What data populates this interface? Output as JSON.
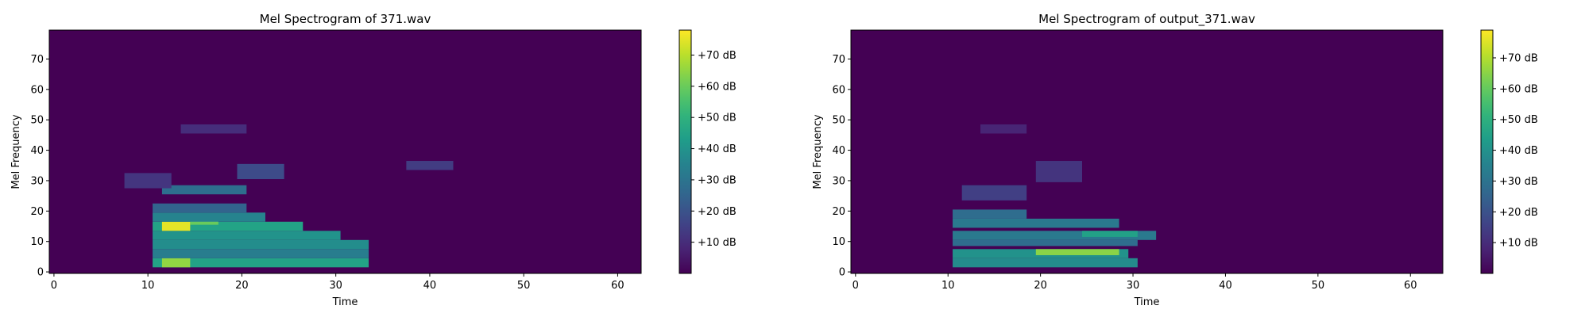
{
  "chart_data": [
    {
      "type": "heatmap",
      "title": "Mel Spectrogram of 371.wav",
      "xlabel": "Time",
      "ylabel": "Mel Frequency",
      "xlim": [
        -0.5,
        62.5
      ],
      "ylim": [
        -0.5,
        79.5
      ],
      "xticks": [
        0,
        10,
        20,
        30,
        40,
        50,
        60
      ],
      "yticks": [
        0,
        10,
        20,
        30,
        40,
        50,
        60,
        70
      ],
      "colormap": "viridis",
      "colorbar": {
        "range_db": [
          0,
          78
        ],
        "ticks": [
          10,
          20,
          30,
          40,
          50,
          60,
          70
        ],
        "tick_labels": [
          "+10 dB",
          "+20 dB",
          "+30 dB",
          "+40 dB",
          "+50 dB",
          "+60 dB",
          "+70 dB"
        ]
      },
      "energy_regions": [
        {
          "t": [
            11,
            33
          ],
          "mel": [
            2,
            4
          ],
          "db": 45
        },
        {
          "t": [
            12,
            14
          ],
          "mel": [
            2,
            4
          ],
          "db": 65
        },
        {
          "t": [
            11,
            33
          ],
          "mel": [
            5,
            7
          ],
          "db": 33
        },
        {
          "t": [
            11,
            33
          ],
          "mel": [
            8,
            10
          ],
          "db": 38
        },
        {
          "t": [
            11,
            30
          ],
          "mel": [
            11,
            13
          ],
          "db": 40
        },
        {
          "t": [
            11,
            26
          ],
          "mel": [
            14,
            16
          ],
          "db": 45
        },
        {
          "t": [
            12,
            14
          ],
          "mel": [
            14,
            16
          ],
          "db": 75
        },
        {
          "t": [
            15,
            17
          ],
          "mel": [
            16,
            17
          ],
          "db": 60
        },
        {
          "t": [
            11,
            22
          ],
          "mel": [
            17,
            19
          ],
          "db": 35
        },
        {
          "t": [
            11,
            20
          ],
          "mel": [
            20,
            22
          ],
          "db": 25
        },
        {
          "t": [
            12,
            20
          ],
          "mel": [
            26,
            28
          ],
          "db": 28
        },
        {
          "t": [
            20,
            24
          ],
          "mel": [
            31,
            35
          ],
          "db": 18
        },
        {
          "t": [
            8,
            12
          ],
          "mel": [
            28,
            32
          ],
          "db": 12
        },
        {
          "t": [
            14,
            20
          ],
          "mel": [
            46,
            48
          ],
          "db": 10
        },
        {
          "t": [
            38,
            42
          ],
          "mel": [
            34,
            36
          ],
          "db": 14
        }
      ]
    },
    {
      "type": "heatmap",
      "title": "Mel Spectrogram of output_371.wav",
      "xlabel": "Time",
      "ylabel": "Mel Frequency",
      "xlim": [
        -0.5,
        63.5
      ],
      "ylim": [
        -0.5,
        79.5
      ],
      "xticks": [
        0,
        10,
        20,
        30,
        40,
        50,
        60
      ],
      "yticks": [
        0,
        10,
        20,
        30,
        40,
        50,
        60,
        70
      ],
      "colormap": "viridis",
      "colorbar": {
        "range_db": [
          0,
          79
        ],
        "ticks": [
          10,
          20,
          30,
          40,
          50,
          60,
          70
        ],
        "tick_labels": [
          "+10 dB",
          "+20 dB",
          "+30 dB",
          "+40 dB",
          "+50 dB",
          "+60 dB",
          "+70 dB"
        ]
      },
      "energy_regions": [
        {
          "t": [
            11,
            30
          ],
          "mel": [
            2,
            4
          ],
          "db": 38
        },
        {
          "t": [
            11,
            29
          ],
          "mel": [
            5,
            7
          ],
          "db": 40
        },
        {
          "t": [
            20,
            28
          ],
          "mel": [
            6,
            7
          ],
          "db": 65
        },
        {
          "t": [
            11,
            30
          ],
          "mel": [
            9,
            10
          ],
          "db": 28
        },
        {
          "t": [
            11,
            32
          ],
          "mel": [
            11,
            13
          ],
          "db": 32
        },
        {
          "t": [
            25,
            30
          ],
          "mel": [
            12,
            13
          ],
          "db": 45
        },
        {
          "t": [
            11,
            28
          ],
          "mel": [
            15,
            17
          ],
          "db": 32
        },
        {
          "t": [
            11,
            18
          ],
          "mel": [
            18,
            20
          ],
          "db": 28
        },
        {
          "t": [
            12,
            18
          ],
          "mel": [
            24,
            28
          ],
          "db": 15
        },
        {
          "t": [
            20,
            24
          ],
          "mel": [
            30,
            36
          ],
          "db": 12
        },
        {
          "t": [
            14,
            18
          ],
          "mel": [
            46,
            48
          ],
          "db": 8
        }
      ]
    }
  ]
}
